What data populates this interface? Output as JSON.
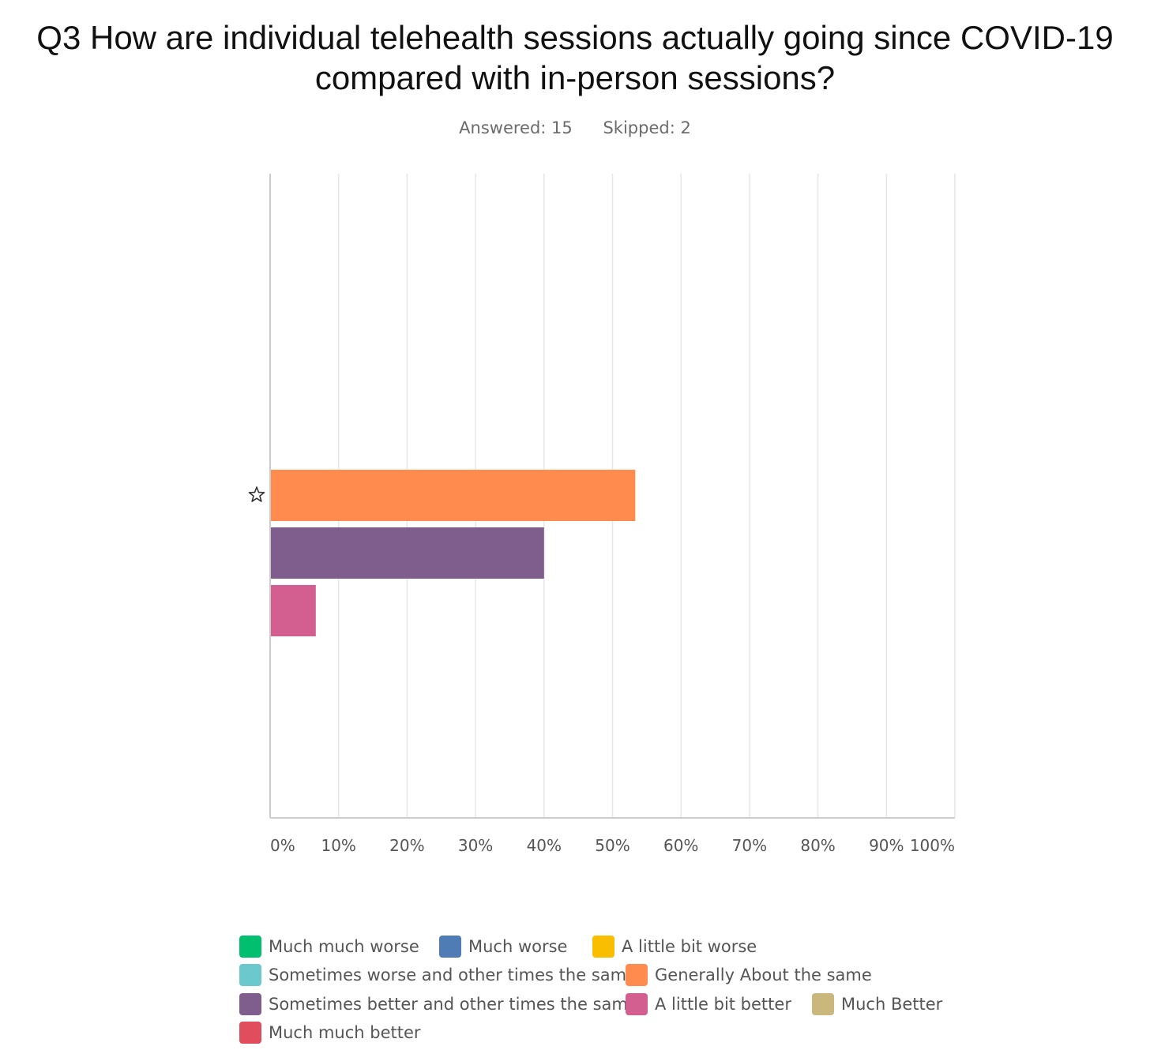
{
  "title_line1": "Q3 How are individual telehealth sessions actually going since COVID-19",
  "title_line2": "compared with in-person sessions?",
  "answered": "Answered: 15",
  "skipped": "Skipped: 2",
  "chart_data": {
    "type": "bar",
    "orientation": "horizontal",
    "categories": [
      ""
    ],
    "series": [
      {
        "name": "Much much worse",
        "values": [
          0
        ],
        "color": "#00bf6f"
      },
      {
        "name": "Much worse",
        "values": [
          0
        ],
        "color": "#507cb6"
      },
      {
        "name": "A little bit worse",
        "values": [
          0
        ],
        "color": "#f9be00"
      },
      {
        "name": "Sometimes worse and other times the same",
        "values": [
          0
        ],
        "color": "#6bc8cd"
      },
      {
        "name": "Generally About the same",
        "values": [
          53.33
        ],
        "color": "#ff8b4f"
      },
      {
        "name": "Sometimes better and other times the same",
        "values": [
          40.0
        ],
        "color": "#7f5e8e"
      },
      {
        "name": "A little bit better",
        "values": [
          6.67
        ],
        "color": "#d25f90"
      },
      {
        "name": "Much Better",
        "values": [
          0
        ],
        "color": "#c9b77b"
      },
      {
        "name": "Much much better",
        "values": [
          0
        ],
        "color": "#e04e5e"
      }
    ],
    "xlim": [
      0,
      100
    ],
    "x_ticks": [
      "0%",
      "10%",
      "20%",
      "30%",
      "40%",
      "50%",
      "60%",
      "70%",
      "80%",
      "90%",
      "100%"
    ],
    "grid": true,
    "legend_position": "bottom",
    "marker_icon": "star-outline-icon"
  }
}
